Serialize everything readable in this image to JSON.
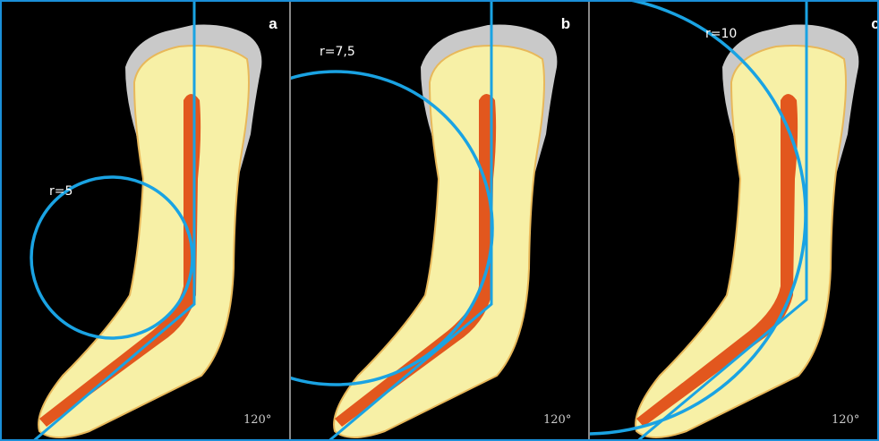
{
  "panels": [
    {
      "label": "a",
      "radius": "r=5",
      "angle": "120°"
    },
    {
      "label": "b",
      "radius": "r=7,5",
      "angle": "120°"
    },
    {
      "label": "c",
      "radius": "r=10",
      "angle": "120°"
    }
  ]
}
